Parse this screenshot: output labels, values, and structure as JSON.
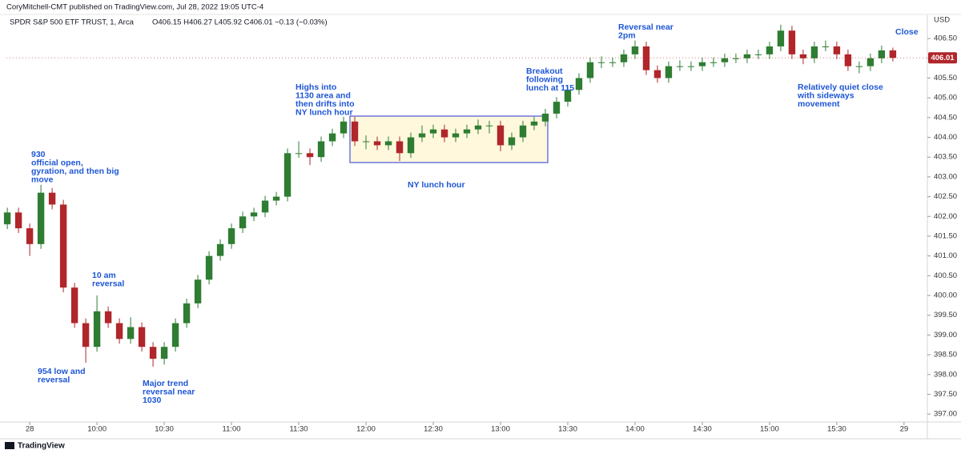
{
  "publisher": "CoryMitchell-CMT published on TradingView.com, Jul 28, 2022 19:05 UTC-4",
  "footer": "TradingView",
  "chart_data": {
    "type": "candlestick",
    "symbol": "SPDR S&P 500 ETF TRUST, 1, Arca",
    "ohlc_text": "O406.15 H406.27 L405.92 C406.01 −0.13 (−0.03%)",
    "currency": "USD",
    "last_price": 406.01,
    "up_color": "#2e7d32",
    "down_color": "#b0262a",
    "grid": false,
    "xlim": [
      -10.4,
      400.4
    ],
    "ylim": [
      396.8,
      407.11
    ],
    "xticks": [
      {
        "value": 0,
        "label": "28"
      },
      {
        "value": 30,
        "label": "10:00"
      },
      {
        "value": 60,
        "label": "10:30"
      },
      {
        "value": 90,
        "label": "11:00"
      },
      {
        "value": 120,
        "label": "11:30"
      },
      {
        "value": 150,
        "label": "12:00"
      },
      {
        "value": 180,
        "label": "12:30"
      },
      {
        "value": 210,
        "label": "13:00"
      },
      {
        "value": 240,
        "label": "13:30"
      },
      {
        "value": 270,
        "label": "14:00"
      },
      {
        "value": 300,
        "label": "14:30"
      },
      {
        "value": 330,
        "label": "15:00"
      },
      {
        "value": 360,
        "label": "15:30"
      },
      {
        "value": 390,
        "label": "29"
      }
    ],
    "yticks": [
      {
        "value": 397,
        "label": "397.00"
      },
      {
        "value": 397.5,
        "label": "397.50"
      },
      {
        "value": 398,
        "label": "398.00"
      },
      {
        "value": 398.5,
        "label": "398.50"
      },
      {
        "value": 399,
        "label": "399.00"
      },
      {
        "value": 399.5,
        "label": "399.50"
      },
      {
        "value": 400,
        "label": "400.00"
      },
      {
        "value": 400.5,
        "label": "400.50"
      },
      {
        "value": 401,
        "label": "401.00"
      },
      {
        "value": 401.5,
        "label": "401.50"
      },
      {
        "value": 402,
        "label": "402.00"
      },
      {
        "value": 402.5,
        "label": "402.50"
      },
      {
        "value": 403,
        "label": "403.00"
      },
      {
        "value": 403.5,
        "label": "403.50"
      },
      {
        "value": 404,
        "label": "404.00"
      },
      {
        "value": 404.5,
        "label": "404.50"
      },
      {
        "value": 405,
        "label": "405.00"
      },
      {
        "value": 405.5,
        "label": "405.50"
      },
      {
        "value": 406,
        "label": "406.00"
      },
      {
        "value": 406.5,
        "label": "406.50"
      }
    ],
    "x": [
      -10,
      -5,
      0,
      5,
      10,
      15,
      20,
      25,
      30,
      35,
      40,
      45,
      50,
      55,
      60,
      65,
      70,
      75,
      80,
      85,
      90,
      95,
      100,
      105,
      110,
      115,
      120,
      125,
      130,
      135,
      140,
      145,
      150,
      155,
      160,
      165,
      170,
      175,
      180,
      185,
      190,
      195,
      200,
      205,
      210,
      215,
      220,
      225,
      230,
      235,
      240,
      245,
      250,
      255,
      260,
      265,
      270,
      275,
      280,
      285,
      290,
      295,
      300,
      305,
      310,
      315,
      320,
      325,
      330,
      335,
      340,
      345,
      350,
      355,
      360,
      365,
      370,
      375,
      380,
      385
    ],
    "open": [
      401.8,
      402.1,
      401.7,
      401.3,
      402.6,
      402.3,
      400.2,
      399.3,
      398.7,
      399.6,
      399.3,
      398.9,
      399.2,
      398.7,
      398.4,
      398.7,
      399.3,
      399.8,
      400.4,
      401.0,
      401.3,
      401.7,
      402.0,
      402.1,
      402.4,
      402.5,
      403.6,
      403.6,
      403.5,
      403.9,
      404.1,
      404.4,
      403.9,
      403.9,
      403.8,
      403.9,
      403.6,
      404.0,
      404.1,
      404.2,
      404.0,
      404.1,
      404.2,
      404.3,
      404.3,
      403.8,
      404.0,
      404.3,
      404.4,
      404.6,
      404.9,
      405.2,
      405.5,
      405.9,
      405.9,
      405.9,
      406.1,
      406.3,
      405.7,
      405.5,
      405.8,
      405.8,
      405.8,
      405.9,
      405.9,
      406.0,
      406.0,
      406.1,
      406.1,
      406.3,
      406.7,
      406.1,
      406.0,
      406.3,
      406.3,
      406.1,
      405.8,
      405.8,
      406.0,
      406.2
    ],
    "high": [
      402.22,
      402.22,
      401.82,
      402.8,
      402.72,
      402.42,
      400.32,
      399.42,
      400.0,
      399.72,
      399.42,
      399.45,
      399.32,
      398.82,
      398.82,
      399.42,
      399.92,
      400.52,
      401.12,
      401.42,
      401.82,
      402.12,
      402.22,
      402.52,
      402.62,
      403.72,
      403.9,
      403.72,
      404.02,
      404.22,
      404.52,
      404.52,
      404.05,
      404.02,
      404.02,
      404.02,
      404.12,
      404.3,
      404.32,
      404.32,
      404.22,
      404.32,
      404.45,
      404.42,
      404.42,
      404.12,
      404.42,
      404.52,
      404.72,
      405.02,
      405.32,
      405.62,
      406.02,
      406.05,
      406.02,
      406.22,
      406.45,
      406.42,
      405.82,
      405.92,
      405.95,
      405.92,
      406.02,
      406.02,
      406.12,
      406.12,
      406.22,
      406.22,
      406.42,
      406.85,
      406.82,
      406.22,
      406.42,
      406.45,
      406.42,
      406.22,
      405.92,
      406.12,
      406.32,
      406.27
    ],
    "low": [
      401.68,
      401.58,
      401.0,
      401.18,
      402.18,
      400.08,
      399.18,
      398.3,
      398.58,
      399.18,
      398.78,
      398.78,
      398.58,
      398.2,
      398.25,
      398.58,
      399.18,
      399.68,
      400.28,
      400.88,
      401.18,
      401.58,
      401.88,
      401.98,
      402.28,
      402.38,
      403.48,
      403.3,
      403.38,
      403.78,
      403.98,
      403.78,
      403.7,
      403.68,
      403.68,
      403.4,
      403.48,
      403.88,
      403.98,
      403.88,
      403.88,
      403.98,
      404.08,
      404.1,
      403.65,
      403.68,
      403.88,
      404.18,
      404.28,
      404.48,
      404.78,
      405.08,
      405.38,
      405.75,
      405.78,
      405.78,
      405.98,
      405.58,
      405.38,
      405.38,
      405.68,
      405.68,
      405.68,
      405.78,
      405.78,
      405.88,
      405.88,
      405.98,
      405.98,
      406.18,
      405.98,
      405.85,
      405.88,
      406.18,
      405.98,
      405.68,
      405.62,
      405.68,
      405.88,
      405.92
    ],
    "close": [
      402.1,
      401.7,
      401.3,
      402.6,
      402.3,
      400.2,
      399.3,
      398.7,
      399.6,
      399.3,
      398.9,
      399.2,
      398.7,
      398.4,
      398.7,
      399.3,
      399.8,
      400.4,
      401.0,
      401.3,
      401.7,
      402.0,
      402.1,
      402.4,
      402.5,
      403.6,
      403.6,
      403.5,
      403.9,
      404.1,
      404.4,
      403.9,
      403.9,
      403.8,
      403.9,
      403.6,
      404.0,
      404.1,
      404.2,
      404.0,
      404.1,
      404.2,
      404.3,
      404.3,
      403.8,
      404.0,
      404.3,
      404.4,
      404.6,
      404.9,
      405.2,
      405.5,
      405.9,
      405.9,
      405.9,
      406.1,
      406.3,
      405.7,
      405.5,
      405.8,
      405.8,
      405.8,
      405.9,
      405.9,
      406.0,
      406.0,
      406.1,
      406.1,
      406.3,
      406.7,
      406.1,
      406.0,
      406.3,
      406.3,
      406.1,
      405.8,
      405.8,
      406.0,
      406.2,
      406.01
    ],
    "annotations": [
      [
        "930",
        "official open,",
        "gyration, and then big",
        "move"
      ],
      [
        "10 am",
        "reversal"
      ],
      [
        "954 low and",
        "reversal"
      ],
      [
        "Major trend",
        "reversal near",
        "1030"
      ],
      [
        "Highs into",
        "1130 area and",
        "then drifts into",
        "NY lunch hour"
      ],
      [
        "NY lunch hour"
      ],
      [
        "Breakout",
        "following",
        "lunch at 115"
      ],
      [
        "Reversal near",
        "2pm"
      ],
      [
        "Relatively quiet close",
        "with sideways",
        "movement"
      ],
      [
        "Close"
      ]
    ]
  }
}
